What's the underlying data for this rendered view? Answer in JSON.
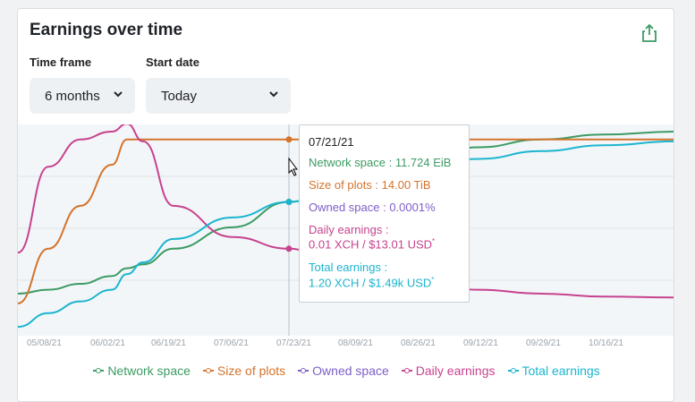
{
  "header": {
    "title": "Earnings over time"
  },
  "controls": {
    "timeframe": {
      "label": "Time frame",
      "value": "6 months"
    },
    "start_date": {
      "label": "Start date",
      "value": "Today"
    }
  },
  "colors": {
    "network_space": "#3c9b63",
    "size_of_plots": "#d4742d",
    "owned_space": "#7e60c8",
    "daily_earnings": "#c6438e",
    "total_earnings": "#1bb5cf"
  },
  "chart_data": {
    "type": "line",
    "title": "Earnings over time",
    "x_ticks": [
      "05/08/21",
      "06/02/21",
      "06/19/21",
      "07/06/21",
      "07/23/21",
      "08/09/21",
      "08/26/21",
      "09/12/21",
      "09/29/21",
      "10/16/21"
    ],
    "x": [
      "04/29/21",
      "05/08/21",
      "05/16/21",
      "05/24/21",
      "06/02/21",
      "06/05/21",
      "06/19/21",
      "07/06/21",
      "07/21/21",
      "08/09/21",
      "08/26/21",
      "09/12/21",
      "09/29/21",
      "10/16/21",
      "10/27/21"
    ],
    "series": [
      {
        "name": "Network space",
        "values": [
          0.17,
          0.19,
          0.22,
          0.26,
          0.3,
          0.32,
          0.4,
          0.51,
          0.64,
          0.77,
          0.86,
          0.92,
          0.96,
          0.985,
          1.0
        ]
      },
      {
        "name": "Size of plots",
        "values": [
          0.12,
          0.4,
          0.62,
          0.83,
          0.96,
          0.96,
          0.96,
          0.96,
          0.96,
          0.96,
          0.96,
          0.96,
          0.96,
          0.96,
          0.96
        ]
      },
      {
        "name": "Daily earnings",
        "values": [
          0.38,
          0.82,
          0.96,
          1.0,
          1.04,
          0.95,
          0.62,
          0.46,
          0.4,
          0.26,
          0.22,
          0.19,
          0.17,
          0.155,
          0.15
        ]
      },
      {
        "name": "Total earnings",
        "values": [
          0.0,
          0.07,
          0.13,
          0.19,
          0.27,
          0.33,
          0.45,
          0.56,
          0.64,
          0.75,
          0.81,
          0.86,
          0.9,
          0.93,
          0.95
        ]
      }
    ],
    "legend": [
      "Network space",
      "Size of plots",
      "Owned space",
      "Daily earnings",
      "Total earnings"
    ],
    "hover": {
      "date": "07/21/21",
      "network_space": "Network space : 11.724 EiB",
      "size_of_plots": "Size of plots : 14.00 TiB",
      "owned_space": "Owned space : 0.0001%",
      "daily_earnings_label": "Daily earnings :",
      "daily_earnings_value": "0.01 XCH / $13.01 USD",
      "total_earnings_label": "Total earnings :",
      "total_earnings_value": "1.20 XCH / $1.49k USD",
      "footnote_mark": "*"
    }
  }
}
